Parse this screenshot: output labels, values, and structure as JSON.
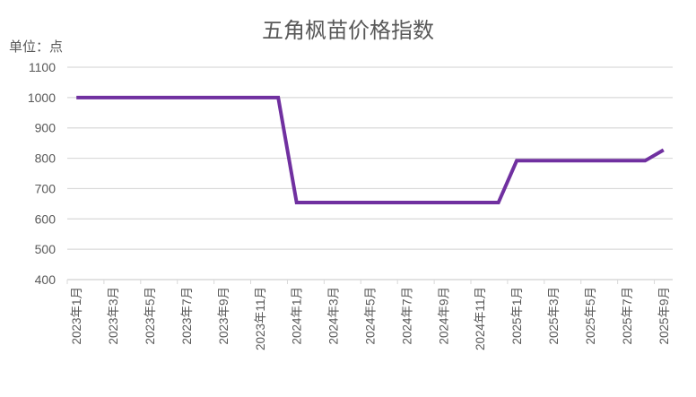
{
  "chart_data": {
    "type": "line",
    "title": "五角枫苗价格指数",
    "unit_label": "单位：点",
    "xlabel": "",
    "ylabel": "单位：点",
    "ylim": [
      400,
      1100
    ],
    "yticks": [
      400,
      500,
      600,
      700,
      800,
      900,
      1000,
      1100
    ],
    "grid": true,
    "legend": "none",
    "line_color": "#7030A0",
    "x": [
      "2023年1月",
      "2023年2月",
      "2023年3月",
      "2023年4月",
      "2023年5月",
      "2023年6月",
      "2023年7月",
      "2023年8月",
      "2023年9月",
      "2023年10月",
      "2023年11月",
      "2023年12月",
      "2024年1月",
      "2024年2月",
      "2024年3月",
      "2024年4月",
      "2024年5月",
      "2024年6月",
      "2024年7月",
      "2024年8月",
      "2024年9月",
      "2024年10月",
      "2024年11月",
      "2024年12月",
      "2025年1月",
      "2025年2月",
      "2025年3月",
      "2025年4月",
      "2025年5月",
      "2025年6月",
      "2025年7月",
      "2025年8月",
      "2025年9月"
    ],
    "x_tick_labels": [
      "2023年1月",
      "2023年3月",
      "2023年5月",
      "2023年7月",
      "2023年9月",
      "2023年11月",
      "2024年1月",
      "2024年3月",
      "2024年5月",
      "2024年7月",
      "2024年9月",
      "2024年11月",
      "2025年1月",
      "2025年3月",
      "2025年5月",
      "2025年7月",
      "2025年9月"
    ],
    "series": [
      {
        "name": "五角枫苗价格指数",
        "values": [
          1000,
          1000,
          1000,
          1000,
          1000,
          1000,
          1000,
          1000,
          1000,
          1000,
          1000,
          1000,
          654,
          654,
          654,
          654,
          654,
          654,
          654,
          654,
          654,
          654,
          654,
          654,
          792,
          792,
          792,
          792,
          792,
          792,
          792,
          792,
          827
        ]
      }
    ]
  }
}
